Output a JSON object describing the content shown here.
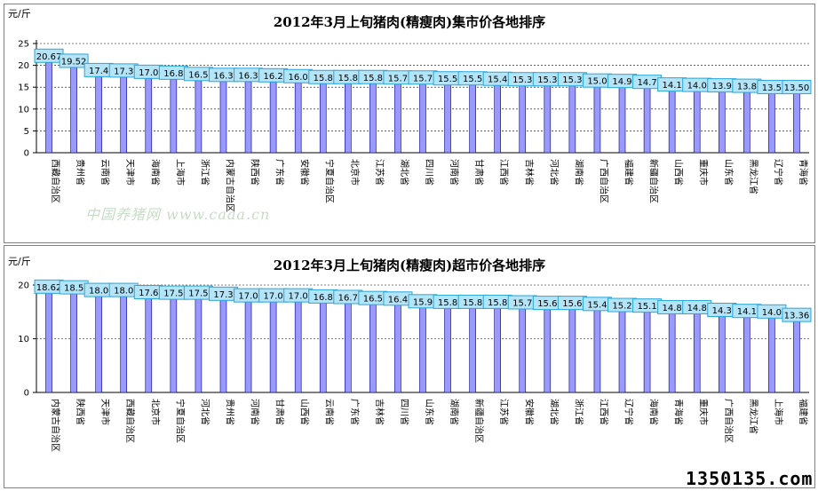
{
  "chart_data": [
    {
      "type": "bar",
      "title": "2012年3月上旬猪肉(精瘦肉)集市价各地排序",
      "ylabel": "元/斤",
      "ylim": [
        0,
        25
      ],
      "yticks": [
        0,
        5,
        10,
        15,
        20,
        25
      ],
      "grid": true,
      "categories": [
        "西藏自治区",
        "贵州省",
        "云南省",
        "天津市",
        "海南省",
        "上海市",
        "浙江省",
        "内蒙古自治区",
        "陕西省",
        "广东省",
        "安徽省",
        "宁夏自治区",
        "北京市",
        "江苏省",
        "湖北省",
        "四川省",
        "河南省",
        "甘肃省",
        "江西省",
        "吉林省",
        "河北省",
        "湖南省",
        "广西自治区",
        "福建省",
        "新疆自治区",
        "山西省",
        "重庆市",
        "山东省",
        "黑龙江省",
        "辽宁省",
        "青海省"
      ],
      "values": [
        20.67,
        19.52,
        17.4,
        17.3,
        17.0,
        16.8,
        16.5,
        16.3,
        16.3,
        16.2,
        16.0,
        15.8,
        15.8,
        15.8,
        15.7,
        15.7,
        15.5,
        15.5,
        15.4,
        15.3,
        15.3,
        15.3,
        15.0,
        14.9,
        14.7,
        14.1,
        14.0,
        13.9,
        13.8,
        13.5,
        13.5
      ],
      "data_labels": [
        "20.67",
        "19.52",
        "17.4",
        "17.3",
        "17.0",
        "16.8",
        "16.5",
        "16.3",
        "16.3",
        "16.2",
        "16.0",
        "15.8",
        "15.8",
        "15.8",
        "15.7",
        "15.7",
        "15.5",
        "15.5",
        "15.4",
        "15.3",
        "15.3",
        "15.3",
        "15.0",
        "14.9",
        "14.7",
        "14.1",
        "14.0",
        "13.9",
        "13.8",
        "13.5",
        "13.50"
      ]
    },
    {
      "type": "bar",
      "title": "2012年3月上旬猪肉(精瘦肉)超市价各地排序",
      "ylabel": "元/斤",
      "ylim": [
        0,
        20
      ],
      "yticks": [
        0,
        10,
        20
      ],
      "grid": true,
      "categories": [
        "内蒙古自治区",
        "陕西省",
        "天津市",
        "西藏自治区",
        "北京市",
        "宁夏自治区",
        "河北省",
        "贵州省",
        "河南省",
        "甘肃省",
        "山西省",
        "云南省",
        "广东省",
        "吉林省",
        "四川省",
        "山东省",
        "湖南省",
        "新疆自治区",
        "江苏省",
        "安徽省",
        "湖北省",
        "浙江省",
        "江西省",
        "辽宁省",
        "海南省",
        "青海省",
        "重庆市",
        "广西自治区",
        "黑龙江省",
        "上海市",
        "福建省"
      ],
      "values": [
        18.62,
        18.5,
        18.0,
        18.0,
        17.6,
        17.5,
        17.5,
        17.3,
        17.0,
        17.0,
        17.0,
        16.8,
        16.7,
        16.5,
        16.4,
        15.9,
        15.8,
        15.8,
        15.8,
        15.7,
        15.6,
        15.6,
        15.4,
        15.2,
        15.1,
        14.8,
        14.8,
        14.3,
        14.1,
        14.0,
        13.36
      ],
      "data_labels": [
        "18.62",
        "18.5",
        "18.0",
        "18.0",
        "17.6",
        "17.5",
        "17.5",
        "17.3",
        "17.0",
        "17.0",
        "17.0",
        "16.8",
        "16.7",
        "16.5",
        "16.4",
        "15.9",
        "15.8",
        "15.8",
        "15.8",
        "15.7",
        "15.6",
        "15.6",
        "15.4",
        "15.2",
        "15.1",
        "14.8",
        "14.8",
        "14.3",
        "14.1",
        "14.0",
        "13.36"
      ]
    }
  ],
  "colors": {
    "bar": "#9999ff",
    "bar_stroke": "#000080",
    "label_bg": "#b4e4f8",
    "label_border": "#2aa6d8",
    "grid": "#000000"
  },
  "watermark": "中国养猪网  www.caaa.cn",
  "brand": "1350135.com"
}
